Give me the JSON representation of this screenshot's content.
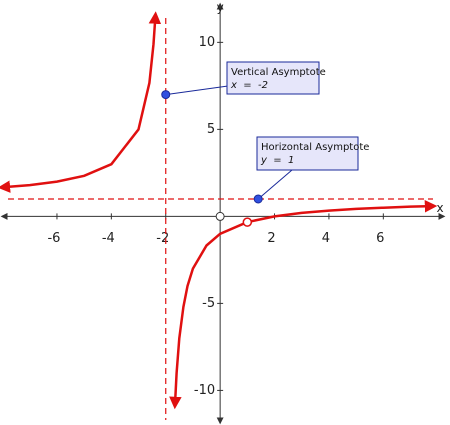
{
  "chart_data": {
    "type": "line",
    "x_label": "x",
    "y_label": "y",
    "xlim": [
      -7.8,
      7.9
    ],
    "ylim": [
      -11.7,
      11.4
    ],
    "xticks": [
      -6,
      -4,
      -2,
      2,
      4,
      6
    ],
    "yticks": [
      -10,
      -5,
      5,
      10
    ],
    "series": [
      {
        "color": "#e01010",
        "x": [
          -8,
          -7,
          -6,
          -5,
          -4,
          -3,
          -2.6,
          -2.45,
          -2.38
        ],
        "values": [
          1.67,
          1.8,
          2,
          2.33,
          3,
          5,
          7.67,
          9.9,
          11.5
        ]
      },
      {
        "color": "#e01010",
        "x": [
          -1.66,
          -1.6,
          -1.5,
          -1.35,
          -1.2,
          -1,
          -0.5,
          0,
          1,
          2,
          3,
          4,
          5,
          6,
          7,
          7.8
        ],
        "values": [
          -10.8,
          -9,
          -7,
          -5.2,
          -4,
          -3,
          -1.67,
          -1,
          -0.33,
          0,
          0.2,
          0.33,
          0.43,
          0.5,
          0.56,
          0.59
        ]
      }
    ],
    "asymptotes": {
      "vertical": -2,
      "horizontal": 1,
      "color": "#e01010"
    },
    "hole": {
      "x": 1,
      "y": -0.33
    },
    "annotations": [
      {
        "title": "Vertical Asymptote",
        "text": "x  =  -2",
        "x": -2,
        "y": 7
      },
      {
        "title": "Horizontal Asymptote",
        "text": "y  =  1",
        "x": 1.4,
        "y": 1
      }
    ]
  }
}
